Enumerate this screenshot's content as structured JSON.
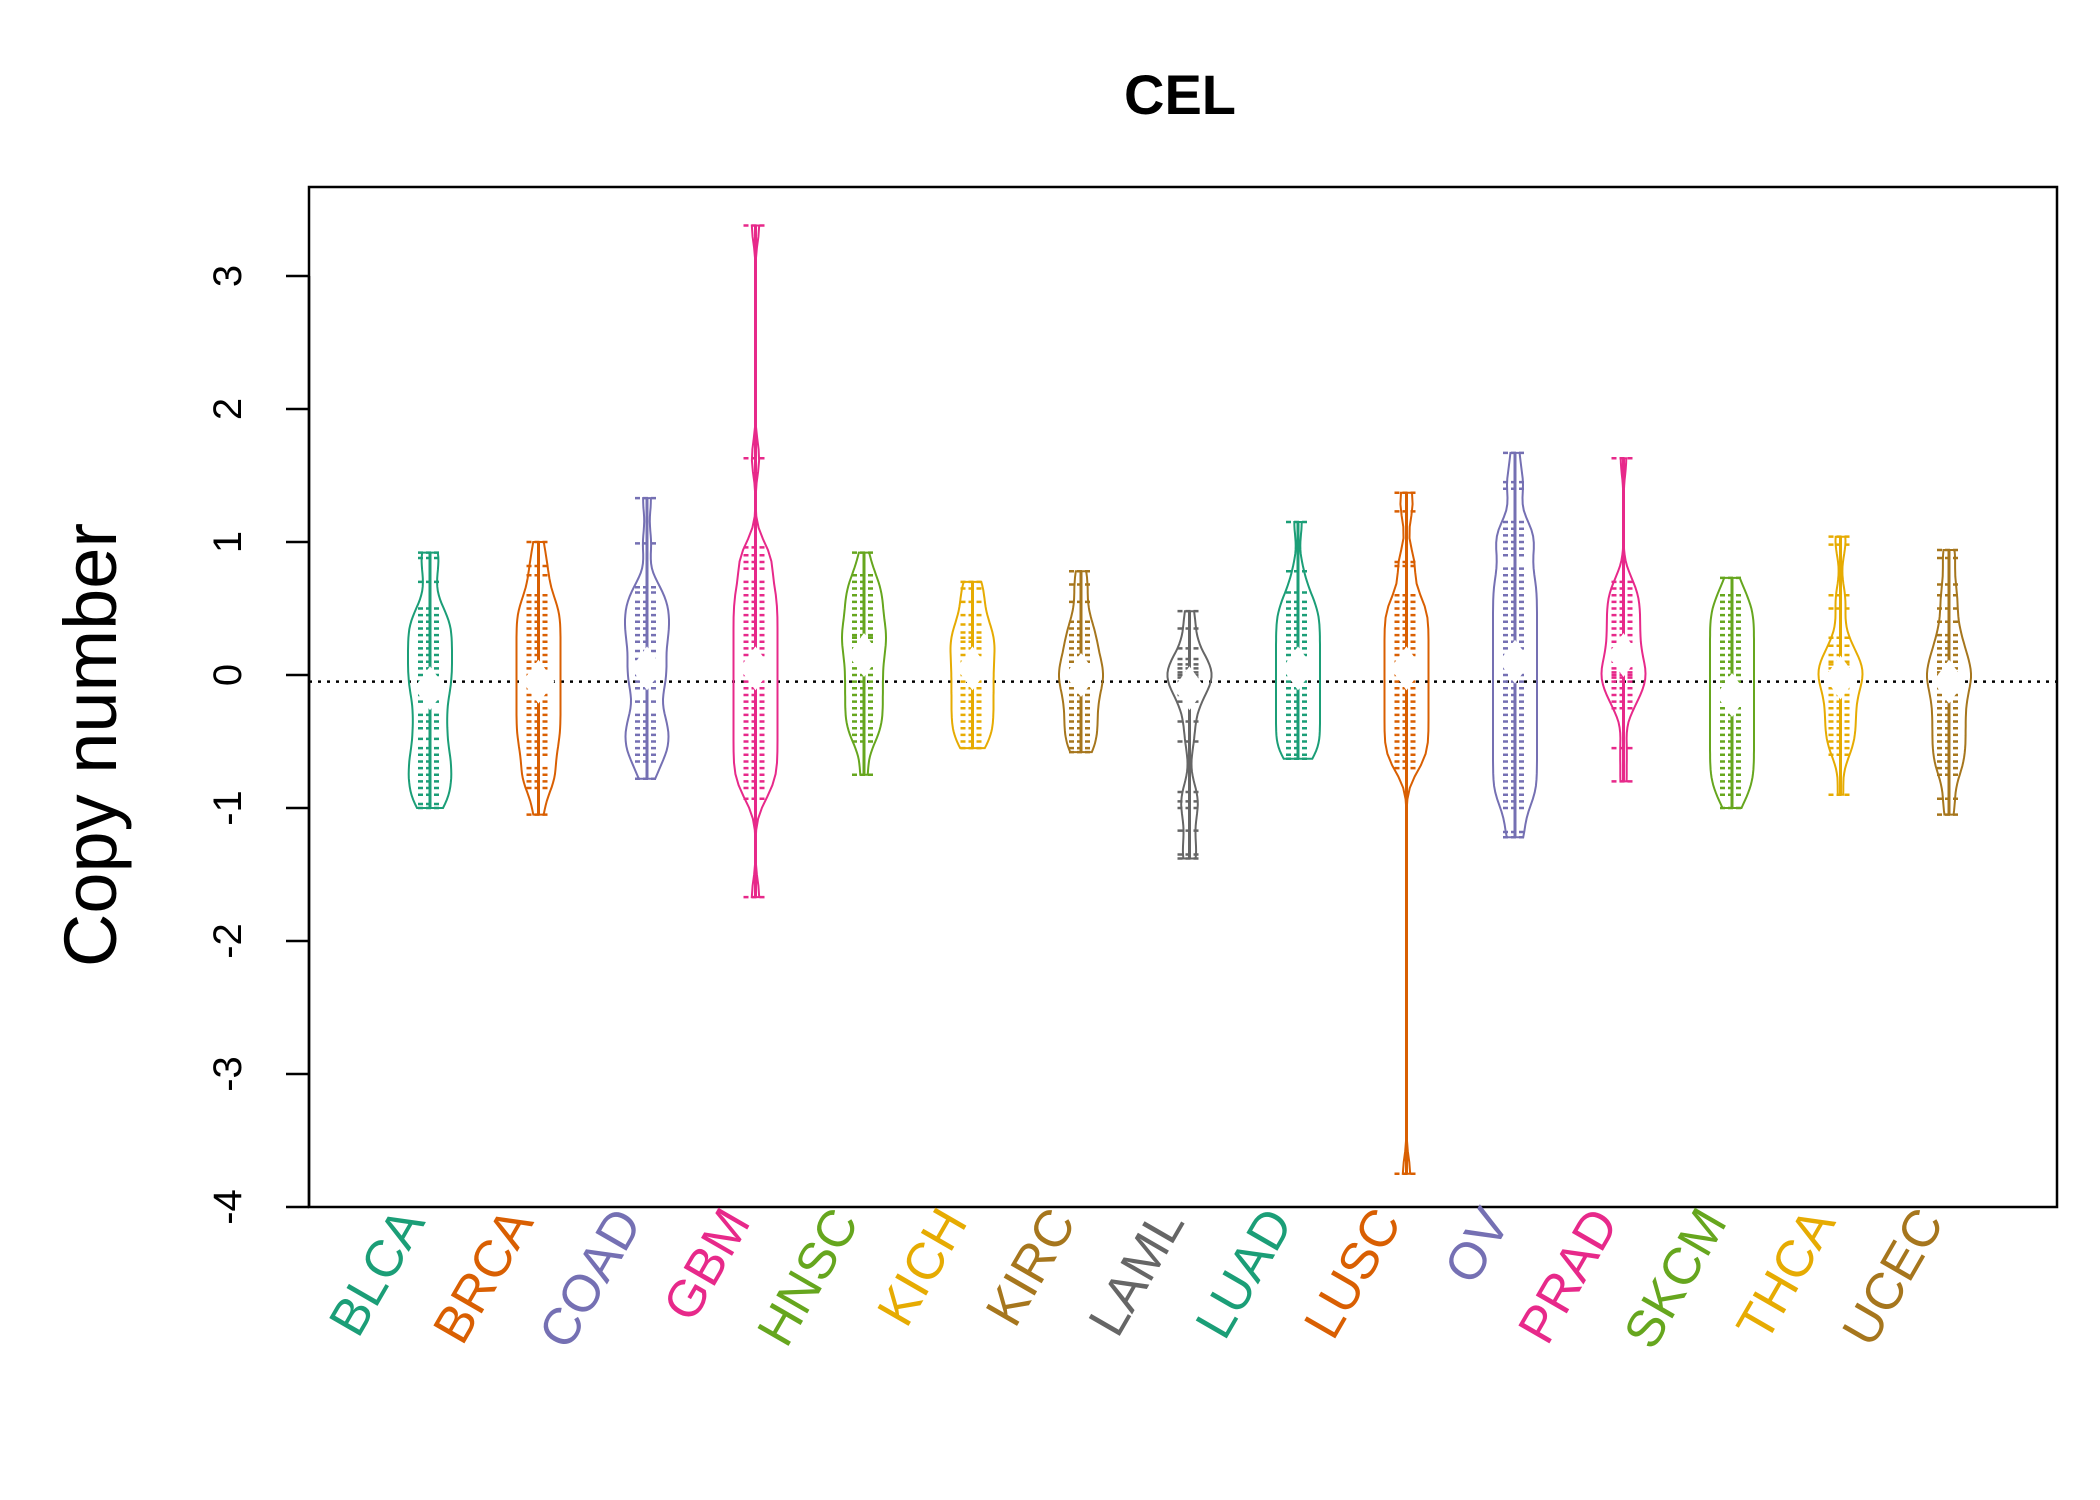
{
  "chart_data": {
    "type": "beanplot",
    "title": "CEL",
    "xlabel": "",
    "ylabel": "Copy number",
    "ylim": [
      -4,
      3.5
    ],
    "yticks": [
      -4,
      -3,
      -2,
      -1,
      0,
      1,
      2,
      3
    ],
    "reference_line": {
      "y": -0.05,
      "style": "dotted",
      "color": "#000000"
    },
    "categories": [
      "BLCA",
      "BRCA",
      "COAD",
      "GBM",
      "HNSC",
      "KICH",
      "KIRC",
      "LAML",
      "LUAD",
      "LUSC",
      "OV",
      "PRAD",
      "SKCM",
      "THCA",
      "UCEC"
    ],
    "series": [
      {
        "name": "BLCA",
        "color": "#1B9E77",
        "points": [
          0.92,
          0.88,
          0.7,
          0.5,
          0.45,
          0.4,
          0.35,
          0.3,
          0.25,
          0.2,
          0.15,
          0.1,
          0.05,
          0.0,
          -0.05,
          -0.1,
          -0.15,
          -0.2,
          -0.3,
          -0.35,
          -0.4,
          -0.48,
          -0.55,
          -0.6,
          -0.65,
          -0.7,
          -0.75,
          -0.8,
          -0.85,
          -0.9,
          -0.97,
          -1.0
        ]
      },
      {
        "name": "BRCA",
        "color": "#D95F02",
        "points": [
          1.0,
          0.82,
          0.75,
          0.6,
          0.55,
          0.5,
          0.45,
          0.4,
          0.35,
          0.3,
          0.25,
          0.2,
          0.15,
          0.1,
          0.05,
          0.0,
          -0.05,
          -0.1,
          -0.15,
          -0.2,
          -0.25,
          -0.3,
          -0.35,
          -0.4,
          -0.45,
          -0.5,
          -0.55,
          -0.6,
          -0.7,
          -0.75,
          -0.8,
          -0.85,
          -1.05
        ]
      },
      {
        "name": "COAD",
        "color": "#7570B3",
        "points": [
          1.33,
          0.99,
          0.66,
          0.62,
          0.55,
          0.5,
          0.45,
          0.4,
          0.35,
          0.3,
          0.25,
          0.18,
          0.12,
          0.05,
          0.0,
          -0.05,
          -0.1,
          -0.2,
          -0.3,
          -0.35,
          -0.4,
          -0.45,
          -0.5,
          -0.55,
          -0.6,
          -0.65,
          -0.78
        ]
      },
      {
        "name": "GBM",
        "color": "#E7298A",
        "points": [
          3.38,
          1.63,
          0.96,
          0.9,
          0.85,
          0.8,
          0.7,
          0.65,
          0.6,
          0.55,
          0.5,
          0.45,
          0.4,
          0.35,
          0.3,
          0.25,
          0.2,
          0.15,
          0.1,
          0.05,
          0.0,
          -0.05,
          -0.1,
          -0.15,
          -0.2,
          -0.25,
          -0.3,
          -0.35,
          -0.4,
          -0.45,
          -0.5,
          -0.55,
          -0.6,
          -0.65,
          -0.7,
          -0.75,
          -0.8,
          -0.85,
          -0.93,
          -1.67
        ]
      },
      {
        "name": "HNSC",
        "color": "#66A61E",
        "points": [
          0.92,
          0.75,
          0.7,
          0.65,
          0.6,
          0.55,
          0.5,
          0.45,
          0.4,
          0.35,
          0.3,
          0.28,
          0.25,
          0.2,
          0.15,
          0.1,
          0.05,
          0.0,
          -0.05,
          -0.1,
          -0.15,
          -0.2,
          -0.25,
          -0.3,
          -0.35,
          -0.4,
          -0.45,
          -0.5,
          -0.75
        ]
      },
      {
        "name": "KICH",
        "color": "#E6AB02",
        "points": [
          0.7,
          0.65,
          0.55,
          0.45,
          0.38,
          0.32,
          0.28,
          0.25,
          0.2,
          0.15,
          0.1,
          0.05,
          0.0,
          -0.05,
          -0.1,
          -0.15,
          -0.2,
          -0.25,
          -0.3,
          -0.35,
          -0.4,
          -0.45,
          -0.5,
          -0.55
        ]
      },
      {
        "name": "KIRC",
        "color": "#A6761D",
        "points": [
          0.78,
          0.68,
          0.55,
          0.4,
          0.35,
          0.3,
          0.25,
          0.2,
          0.15,
          0.1,
          0.05,
          0.02,
          0.0,
          -0.02,
          -0.05,
          -0.1,
          -0.15,
          -0.2,
          -0.25,
          -0.3,
          -0.35,
          -0.4,
          -0.45,
          -0.5,
          -0.55,
          -0.58
        ]
      },
      {
        "name": "LAML",
        "color": "#666666",
        "points": [
          0.48,
          0.35,
          0.2,
          0.12,
          0.08,
          0.05,
          0.02,
          0.0,
          -0.02,
          -0.05,
          -0.1,
          -0.15,
          -0.2,
          -0.35,
          -0.5,
          -0.88,
          -0.95,
          -1.0,
          -1.17,
          -1.35,
          -1.38
        ]
      },
      {
        "name": "LUAD",
        "color": "#1B9E77",
        "points": [
          1.15,
          0.78,
          0.62,
          0.55,
          0.5,
          0.45,
          0.4,
          0.35,
          0.3,
          0.25,
          0.2,
          0.15,
          0.1,
          0.05,
          0.0,
          -0.05,
          -0.1,
          -0.15,
          -0.2,
          -0.25,
          -0.3,
          -0.35,
          -0.4,
          -0.45,
          -0.5,
          -0.55,
          -0.6,
          -0.63
        ]
      },
      {
        "name": "LUSC",
        "color": "#D95F02",
        "points": [
          1.37,
          1.23,
          0.85,
          0.82,
          0.6,
          0.55,
          0.5,
          0.45,
          0.4,
          0.35,
          0.3,
          0.25,
          0.2,
          0.15,
          0.1,
          0.05,
          0.0,
          -0.05,
          -0.1,
          -0.15,
          -0.2,
          -0.25,
          -0.3,
          -0.35,
          -0.4,
          -0.45,
          -0.5,
          -0.55,
          -0.6,
          -0.65,
          -0.7,
          -3.75
        ]
      },
      {
        "name": "OV",
        "color": "#7570B3",
        "points": [
          1.67,
          1.45,
          1.4,
          1.15,
          1.1,
          1.05,
          1.0,
          0.95,
          0.9,
          0.8,
          0.75,
          0.7,
          0.65,
          0.6,
          0.55,
          0.5,
          0.45,
          0.4,
          0.35,
          0.3,
          0.25,
          0.2,
          0.15,
          0.1,
          0.05,
          0.0,
          -0.05,
          -0.1,
          -0.15,
          -0.2,
          -0.25,
          -0.3,
          -0.35,
          -0.4,
          -0.45,
          -0.5,
          -0.55,
          -0.6,
          -0.65,
          -0.7,
          -0.75,
          -0.8,
          -0.85,
          -0.9,
          -0.95,
          -1.0,
          -1.18,
          -1.22
        ]
      },
      {
        "name": "PRAD",
        "color": "#E7298A",
        "points": [
          1.63,
          0.7,
          0.65,
          0.6,
          0.55,
          0.5,
          0.45,
          0.4,
          0.35,
          0.3,
          0.25,
          0.2,
          0.15,
          0.1,
          0.05,
          0.02,
          0.0,
          -0.02,
          -0.05,
          -0.1,
          -0.15,
          -0.2,
          -0.25,
          -0.55,
          -0.8
        ]
      },
      {
        "name": "SKCM",
        "color": "#66A61E",
        "points": [
          0.73,
          0.6,
          0.55,
          0.5,
          0.45,
          0.4,
          0.35,
          0.3,
          0.25,
          0.2,
          0.15,
          0.1,
          0.05,
          0.0,
          -0.05,
          -0.1,
          -0.15,
          -0.2,
          -0.25,
          -0.3,
          -0.35,
          -0.4,
          -0.45,
          -0.5,
          -0.55,
          -0.6,
          -0.65,
          -0.7,
          -0.75,
          -0.8,
          -0.85,
          -0.9,
          -1.0
        ]
      },
      {
        "name": "THCA",
        "color": "#E6AB02",
        "points": [
          1.04,
          0.98,
          0.6,
          0.5,
          0.28,
          0.22,
          0.15,
          0.1,
          0.08,
          0.05,
          0.02,
          0.0,
          -0.02,
          -0.05,
          -0.1,
          -0.15,
          -0.2,
          -0.25,
          -0.3,
          -0.35,
          -0.4,
          -0.45,
          -0.5,
          -0.55,
          -0.6,
          -0.9
        ]
      },
      {
        "name": "UCEC",
        "color": "#A6761D",
        "points": [
          0.94,
          0.88,
          0.68,
          0.6,
          0.5,
          0.4,
          0.3,
          0.25,
          0.2,
          0.15,
          0.1,
          0.05,
          0.02,
          0.0,
          -0.02,
          -0.05,
          -0.1,
          -0.15,
          -0.2,
          -0.25,
          -0.3,
          -0.35,
          -0.4,
          -0.45,
          -0.5,
          -0.55,
          -0.6,
          -0.65,
          -0.7,
          -0.75,
          -0.93,
          -1.05
        ]
      }
    ]
  }
}
